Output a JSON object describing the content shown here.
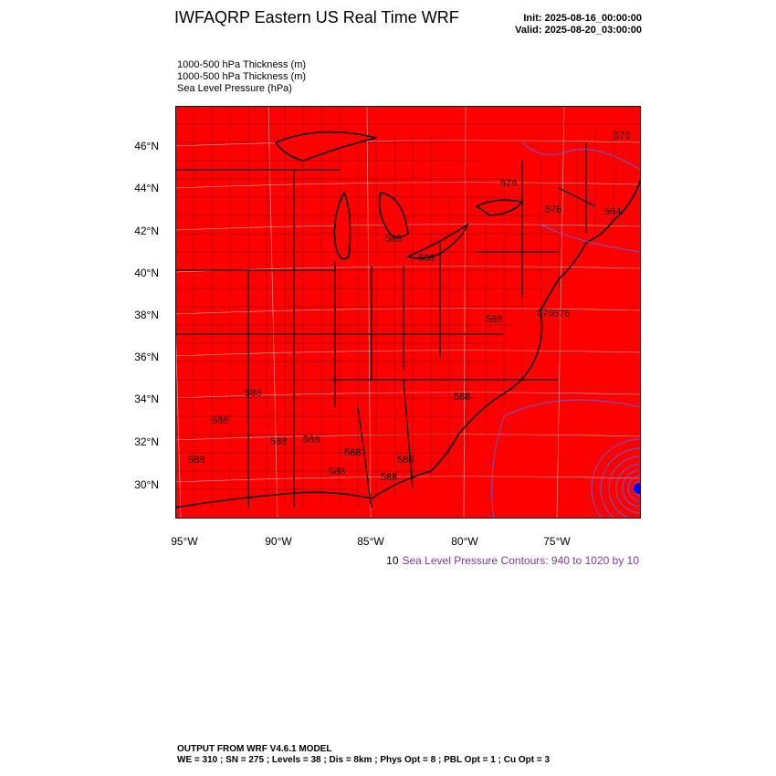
{
  "header": {
    "title": "IWFAQRP Eastern US Real Time WRF",
    "init": "Init: 2025-08-16_00:00:00",
    "valid": "Valid: 2025-08-20_03:00:00"
  },
  "fields": [
    "1000-500 hPa Thickness   (m)",
    "1000-500 hPa Thickness   (m)",
    "Sea Level Pressure   (hPa)"
  ],
  "map": {
    "fill_color": "#ff0000",
    "border_color": "#000000",
    "pressure_contour_color": "#6a5acd",
    "cyclone_center_color": "#0000ff",
    "lat_labels": [
      "46°N",
      "44°N",
      "42°N",
      "40°N",
      "38°N",
      "36°N",
      "34°N",
      "32°N",
      "30°N"
    ],
    "lon_labels": [
      "95°W",
      "90°W",
      "85°W",
      "80°W",
      "75°W"
    ],
    "thickness_labels": [
      "576",
      "576",
      "576",
      "564",
      "588",
      "588",
      "576",
      "576",
      "588",
      "588",
      "588",
      "588",
      "588",
      "588",
      "588",
      "588",
      "588",
      "588",
      "588"
    ]
  },
  "contour_note": {
    "lead": "10",
    "text": "Sea Level Pressure Contours: 940 to 1020 by 10"
  },
  "footer": {
    "line1": "OUTPUT FROM WRF V4.6.1 MODEL",
    "line2": "WE = 310 ; SN = 275 ; Levels = 38 ; Dis = 8km ; Phys Opt = 8 ; PBL Opt = 1 ; Cu Opt = 3"
  }
}
